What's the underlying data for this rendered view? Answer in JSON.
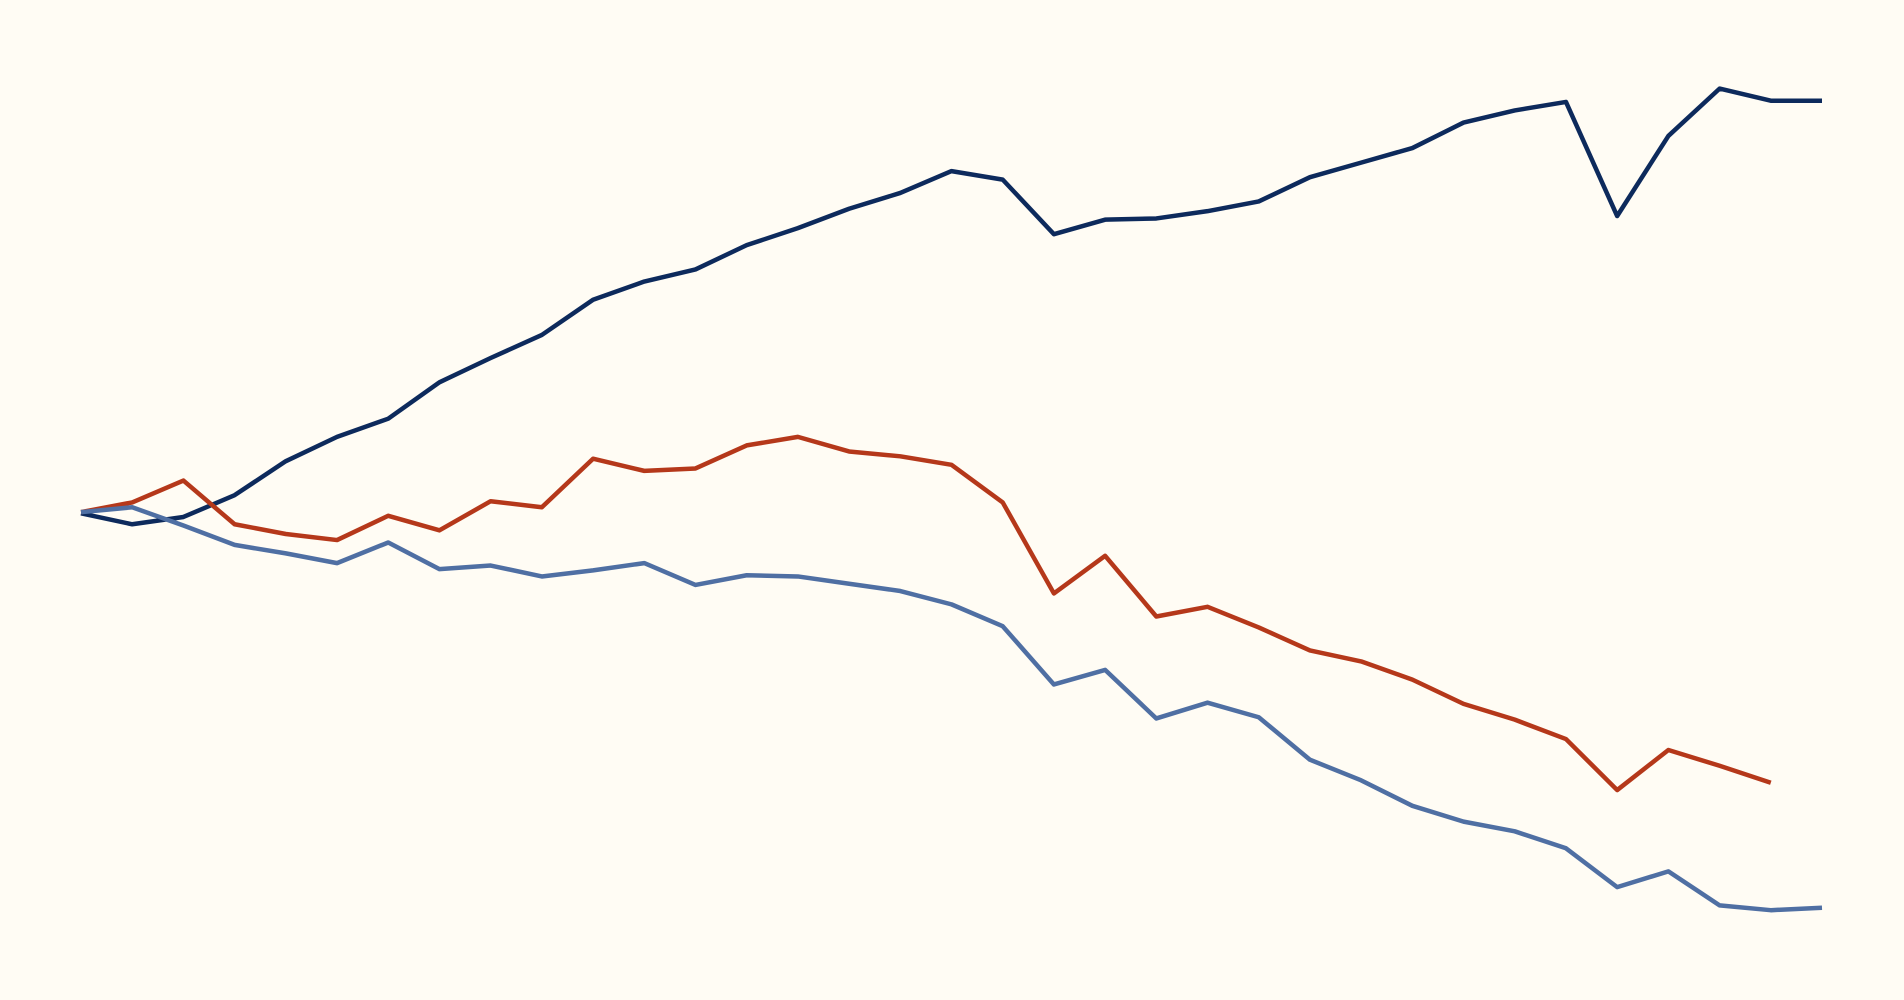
{
  "chart_data": {
    "type": "line",
    "x": [
      0,
      1,
      2,
      3,
      4,
      5,
      6,
      7,
      8,
      9,
      10,
      11,
      12,
      13,
      14,
      15,
      16,
      17,
      18,
      19,
      20,
      21,
      22,
      23,
      24,
      25,
      26,
      27,
      28,
      29,
      30,
      31,
      32,
      33,
      34
    ],
    "xlim": [
      0,
      34
    ],
    "ylim": [
      -401,
      423
    ],
    "series": [
      {
        "color": "#0d2a5c",
        "values": [
          0,
          -9,
          -3,
          15,
          43,
          63,
          78,
          108,
          128,
          147,
          176,
          191,
          201,
          221,
          235,
          251,
          264,
          282,
          275,
          230,
          242,
          243,
          249,
          257,
          277,
          289,
          301,
          322,
          332,
          339,
          245,
          311,
          350,
          340,
          340
        ]
      },
      {
        "color": "#b5381a",
        "values": [
          1,
          9,
          27,
          -9,
          -17,
          -22,
          -2,
          -14,
          10,
          5,
          45,
          35,
          37,
          56,
          63,
          51,
          47,
          40,
          9,
          -66,
          -35,
          -85,
          -77,
          -94,
          -113,
          -122,
          -137,
          -157,
          -170,
          -186,
          -228,
          -195,
          -208,
          -222,
          null
        ]
      },
      {
        "color": "#4f6fa3",
        "values": [
          1,
          5,
          -10,
          -26,
          -33,
          -41,
          -24,
          -46,
          -43,
          -52,
          -47,
          -41,
          -59,
          -51,
          -52,
          -58,
          -64,
          -75,
          -93,
          -141,
          -129,
          -169,
          -156,
          -168,
          -203,
          -220,
          -241,
          -254,
          -262,
          -276,
          -308,
          -295,
          -323,
          -327,
          -325
        ]
      }
    ]
  }
}
